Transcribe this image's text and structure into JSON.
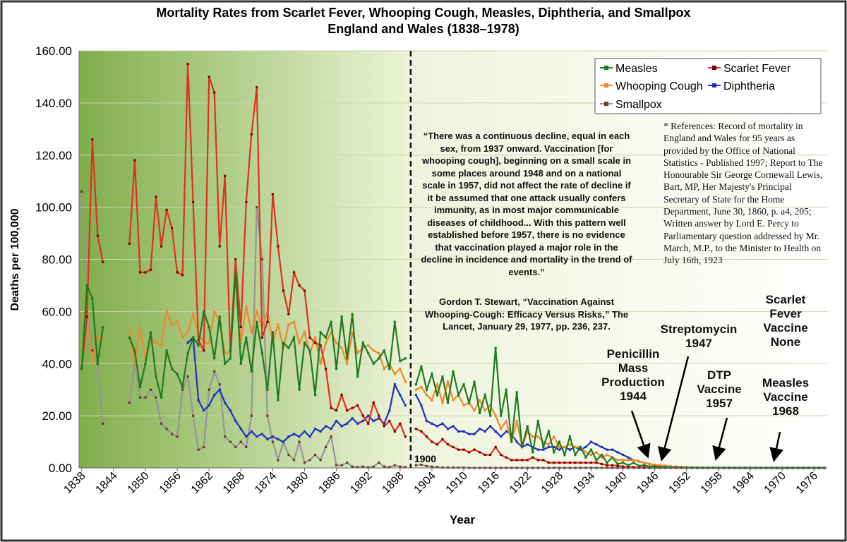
{
  "chart_data": {
    "type": "line",
    "title": "Mortality Rates from Scarlet Fever, Whooping Cough, Measles, Diphtheria, and Smallpox",
    "subtitle": "England and Wales (1838–1978)",
    "x_label": "Year",
    "y_label": "Deaths per 100,000",
    "xlim": [
      1837.5,
      1978.5
    ],
    "ylim": [
      0,
      160
    ],
    "xticks": [
      1838,
      1844,
      1850,
      1856,
      1862,
      1868,
      1874,
      1880,
      1886,
      1892,
      1898,
      1904,
      1910,
      1916,
      1922,
      1928,
      1934,
      1940,
      1946,
      1952,
      1958,
      1964,
      1970,
      1976
    ],
    "yticks": [
      {
        "value": 0,
        "label": "0.00"
      },
      {
        "value": 20,
        "label": "20.00"
      },
      {
        "value": 40,
        "label": "40.00"
      },
      {
        "value": 60,
        "label": "60.00"
      },
      {
        "value": 80,
        "label": "80.00"
      },
      {
        "value": 100,
        "label": "100.00"
      },
      {
        "value": 120,
        "label": "120.00"
      },
      {
        "value": 140,
        "label": "140.00"
      },
      {
        "value": 160,
        "label": "160.00"
      }
    ],
    "grid": true,
    "legend": "top-right",
    "divider": 1900,
    "x": [
      1838,
      1839,
      1840,
      1841,
      1842,
      1843,
      1844,
      1845,
      1846,
      1847,
      1848,
      1849,
      1850,
      1851,
      1852,
      1853,
      1854,
      1855,
      1856,
      1857,
      1858,
      1859,
      1860,
      1861,
      1862,
      1863,
      1864,
      1865,
      1866,
      1867,
      1868,
      1869,
      1870,
      1871,
      1872,
      1873,
      1874,
      1875,
      1876,
      1877,
      1878,
      1879,
      1880,
      1881,
      1882,
      1883,
      1884,
      1885,
      1886,
      1887,
      1888,
      1889,
      1890,
      1891,
      1892,
      1893,
      1894,
      1895,
      1896,
      1897,
      1898,
      1899,
      1900,
      1901,
      1902,
      1903,
      1904,
      1905,
      1906,
      1907,
      1908,
      1909,
      1910,
      1911,
      1912,
      1913,
      1914,
      1915,
      1916,
      1917,
      1918,
      1919,
      1920,
      1921,
      1922,
      1923,
      1924,
      1925,
      1926,
      1927,
      1928,
      1929,
      1930,
      1931,
      1932,
      1933,
      1934,
      1935,
      1936,
      1937,
      1938,
      1939,
      1940,
      1941,
      1942,
      1943,
      1944,
      1945,
      1946,
      1947,
      1948,
      1949,
      1950,
      1951,
      1952,
      1953,
      1954,
      1955,
      1956,
      1957,
      1958,
      1959,
      1960,
      1961,
      1962,
      1963,
      1964,
      1965,
      1966,
      1967,
      1968,
      1969,
      1970,
      1971,
      1972,
      1973,
      1974,
      1975,
      1976,
      1977,
      1978
    ],
    "series": [
      {
        "name": "Measles",
        "color": "#1f7a1f",
        "marker_color": "#1f7a1f",
        "values": [
          38,
          70,
          65,
          40,
          54,
          null,
          null,
          null,
          null,
          50,
          45,
          31,
          40,
          52,
          35,
          27,
          45,
          38,
          36,
          31,
          44,
          50,
          47,
          60,
          54,
          42,
          58,
          40,
          42,
          75,
          40,
          50,
          37,
          56,
          44,
          30,
          52,
          26,
          48,
          46,
          50,
          30,
          48,
          45,
          28,
          52,
          50,
          56,
          38,
          58,
          42,
          59,
          35,
          48,
          44,
          40,
          42,
          45,
          38,
          56,
          41,
          42,
          null,
          32,
          39,
          30,
          36,
          28,
          35,
          25,
          37,
          28,
          32,
          25,
          33,
          21,
          28,
          20,
          46,
          20,
          30,
          10,
          29,
          8,
          16,
          6,
          18,
          8,
          14,
          6,
          10,
          5,
          12,
          5,
          8,
          4,
          7,
          3,
          5,
          2,
          4,
          1.5,
          2,
          1,
          2,
          0.8,
          1,
          0.5,
          0.6,
          0.3,
          0.3,
          0.2,
          0.2,
          0.1,
          0.1,
          0.1,
          0.1,
          0.1,
          0.1,
          0.1,
          0.1,
          0.1,
          0.1,
          0,
          0,
          0,
          0,
          0,
          0,
          0,
          0,
          0,
          0,
          0,
          0,
          0,
          0,
          0,
          0,
          0,
          0
        ]
      },
      {
        "name": "Scarlet Fever",
        "color": "#e0301e",
        "marker_color": "#7a0000",
        "values": [
          38,
          58,
          126,
          89,
          79,
          null,
          null,
          null,
          null,
          86,
          118,
          75,
          75,
          76,
          104,
          85,
          99,
          92,
          75,
          74,
          155,
          102,
          49,
          45,
          150,
          144,
          85,
          112,
          45,
          80,
          54,
          102,
          128,
          146,
          50,
          56,
          105,
          85,
          68,
          59,
          75,
          70,
          68,
          50,
          48,
          47,
          38,
          23,
          22,
          28,
          22,
          23,
          24,
          20,
          17,
          25,
          20,
          16,
          18,
          14,
          17,
          12,
          null,
          15,
          14,
          12,
          10,
          9,
          11,
          9,
          8,
          7,
          7,
          6,
          7,
          6,
          5,
          5,
          8,
          5,
          4,
          3,
          3,
          3,
          3,
          4,
          3,
          3,
          2,
          2,
          2,
          2,
          2,
          2,
          2,
          2,
          2,
          2,
          1.5,
          1,
          1,
          0.8,
          0.5,
          0.4,
          0.3,
          0.2,
          0.2,
          0.1,
          0.1,
          0.1,
          0.1,
          0.05,
          0.05,
          0,
          0,
          0,
          0,
          0,
          0,
          0,
          0,
          0,
          0,
          0,
          0,
          0,
          0,
          0,
          0,
          0,
          0,
          0,
          0,
          0,
          0,
          0,
          0,
          0,
          0,
          0,
          0
        ]
      },
      {
        "name": "Whooping Cough",
        "color": "#f0882c",
        "marker_color": "#f0882c",
        "values": [
          59,
          55,
          40,
          50,
          50,
          null,
          null,
          null,
          null,
          53,
          40,
          54,
          42,
          50,
          48,
          47,
          60,
          55,
          56,
          50,
          52,
          59,
          52,
          48,
          48,
          60,
          56,
          44,
          44,
          74,
          48,
          62,
          52,
          60,
          54,
          60,
          48,
          55,
          46,
          55,
          56,
          48,
          52,
          44,
          50,
          40,
          48,
          52,
          48,
          46,
          40,
          52,
          44,
          46,
          47,
          45,
          44,
          38,
          40,
          36,
          38,
          33,
          null,
          30,
          31,
          28,
          26,
          32,
          25,
          33,
          26,
          28,
          24,
          25,
          22,
          26,
          22,
          24,
          20,
          15,
          18,
          10,
          18,
          8,
          14,
          12,
          12,
          10,
          9,
          12,
          8,
          8,
          9,
          8,
          8,
          6,
          5,
          6,
          4,
          5,
          4,
          3,
          3,
          3,
          3,
          2.5,
          2,
          1.5,
          1.2,
          1,
          0.8,
          0.6,
          0.5,
          0.4,
          0.3,
          0.2,
          0.2,
          0.1,
          0.1,
          0.1,
          0.05,
          0,
          0,
          0,
          0,
          0,
          0,
          0,
          0,
          0,
          0,
          0,
          0,
          0,
          0,
          0,
          0,
          0,
          0,
          0,
          0
        ]
      },
      {
        "name": "Diphtheria",
        "color": "#1f2fbf",
        "marker_color": "#1f2fbf",
        "values": [
          null,
          null,
          null,
          null,
          null,
          null,
          null,
          null,
          null,
          null,
          null,
          null,
          null,
          null,
          null,
          null,
          null,
          null,
          null,
          null,
          48,
          50,
          26,
          22,
          24,
          28,
          30,
          25,
          22,
          18,
          15,
          12,
          14,
          12,
          13,
          11,
          12,
          11,
          10,
          12,
          13,
          12,
          14,
          12,
          15,
          14,
          16,
          15,
          18,
          16,
          17,
          19,
          17,
          18,
          20,
          18,
          19,
          17,
          22,
          32,
          28,
          24,
          null,
          28,
          24,
          18,
          17,
          16,
          17,
          15,
          16,
          14,
          14,
          13,
          13,
          15,
          14,
          16,
          14,
          12,
          14,
          13,
          10,
          8,
          9,
          8,
          7,
          7,
          8,
          8,
          7,
          8,
          7,
          8,
          7,
          8,
          10,
          9,
          8,
          7,
          7,
          6,
          5,
          4,
          3,
          2.5,
          2,
          1.5,
          1,
          0.8,
          0.5,
          0.4,
          0.2,
          0.1,
          0.1,
          0.05,
          0,
          0,
          0,
          0,
          0,
          0,
          0,
          0,
          0,
          0,
          0,
          0,
          0,
          0,
          0,
          0,
          0,
          0,
          0,
          0,
          0,
          0,
          0,
          0,
          0
        ]
      },
      {
        "name": "Smallpox",
        "color": "#959595",
        "marker_color": "#6b3a2a",
        "values": [
          106,
          60,
          45,
          40,
          17,
          null,
          null,
          null,
          null,
          25,
          40,
          27,
          27,
          30,
          27,
          17,
          15,
          13,
          12,
          30,
          35,
          20,
          7,
          8,
          30,
          37,
          32,
          12,
          10,
          8,
          10,
          8,
          20,
          100,
          80,
          20,
          10,
          3,
          10,
          5,
          3,
          10,
          2,
          3,
          5,
          3,
          8,
          12,
          1,
          1,
          2,
          0.5,
          0.3,
          0.5,
          0.2,
          0.5,
          2,
          0.5,
          0.3,
          1,
          0.5,
          0.3,
          null,
          1,
          1.2,
          0.7,
          0.5,
          0.3,
          0.1,
          0.1,
          0.1,
          0.1,
          0.1,
          0,
          0,
          0,
          0,
          0,
          0,
          0,
          0,
          0,
          0,
          0,
          0,
          0,
          0,
          0,
          0,
          0,
          0,
          0,
          0,
          0,
          0,
          0,
          0,
          0,
          0,
          0,
          0,
          0,
          0,
          0,
          0,
          0,
          0,
          0,
          0,
          0,
          0,
          0,
          0,
          0,
          0,
          0,
          0,
          0,
          0,
          0,
          0,
          0,
          0,
          0,
          0,
          0,
          0,
          0,
          0,
          0,
          0,
          0,
          0,
          0,
          0,
          0,
          0,
          0,
          0,
          0,
          0
        ]
      }
    ],
    "quote": "“There was a continuous decline, equal in each sex, from 1937 onward. Vaccination [for whooping cough], beginning on a small scale in some places around 1948 and on a national scale in 1957, did not affect the rate of decline if it be assumed that one attack usually confers immunity, as in most major communicable diseases of childhood... With this pattern well established before 1957, there is no evidence that vaccination played a major role in the decline in incidence and mortality in the trend of events.”",
    "quote_source": "Gordon T. Stewart, “Vaccination Against Whooping-Cough: Efficacy Versus Risks,” The Lancet, January 29, 1977, pp. 236, 237.",
    "references": "* References: Record of mortality in England and Wales for 95 years as provided by the Office of National Statistics - Published 1997; Report to The Honourable Sir George Cornewall Lewis, Bart, MP, Her Majesty's Principal Secretary of State for the Home Department, June 30, 1860, p. a4, 205; Written answer by Lord E. Percy to Parliamentary question addressed by Mr. March, M.P., to the Minister to Health on July 16th, 1923",
    "annotations": [
      "Penicillin Mass Production 1944",
      "Streptomycin 1947",
      "DTP Vaccine 1957",
      "Measles Vaccine 1968",
      "Scarlet Fever Vaccine None"
    ]
  }
}
